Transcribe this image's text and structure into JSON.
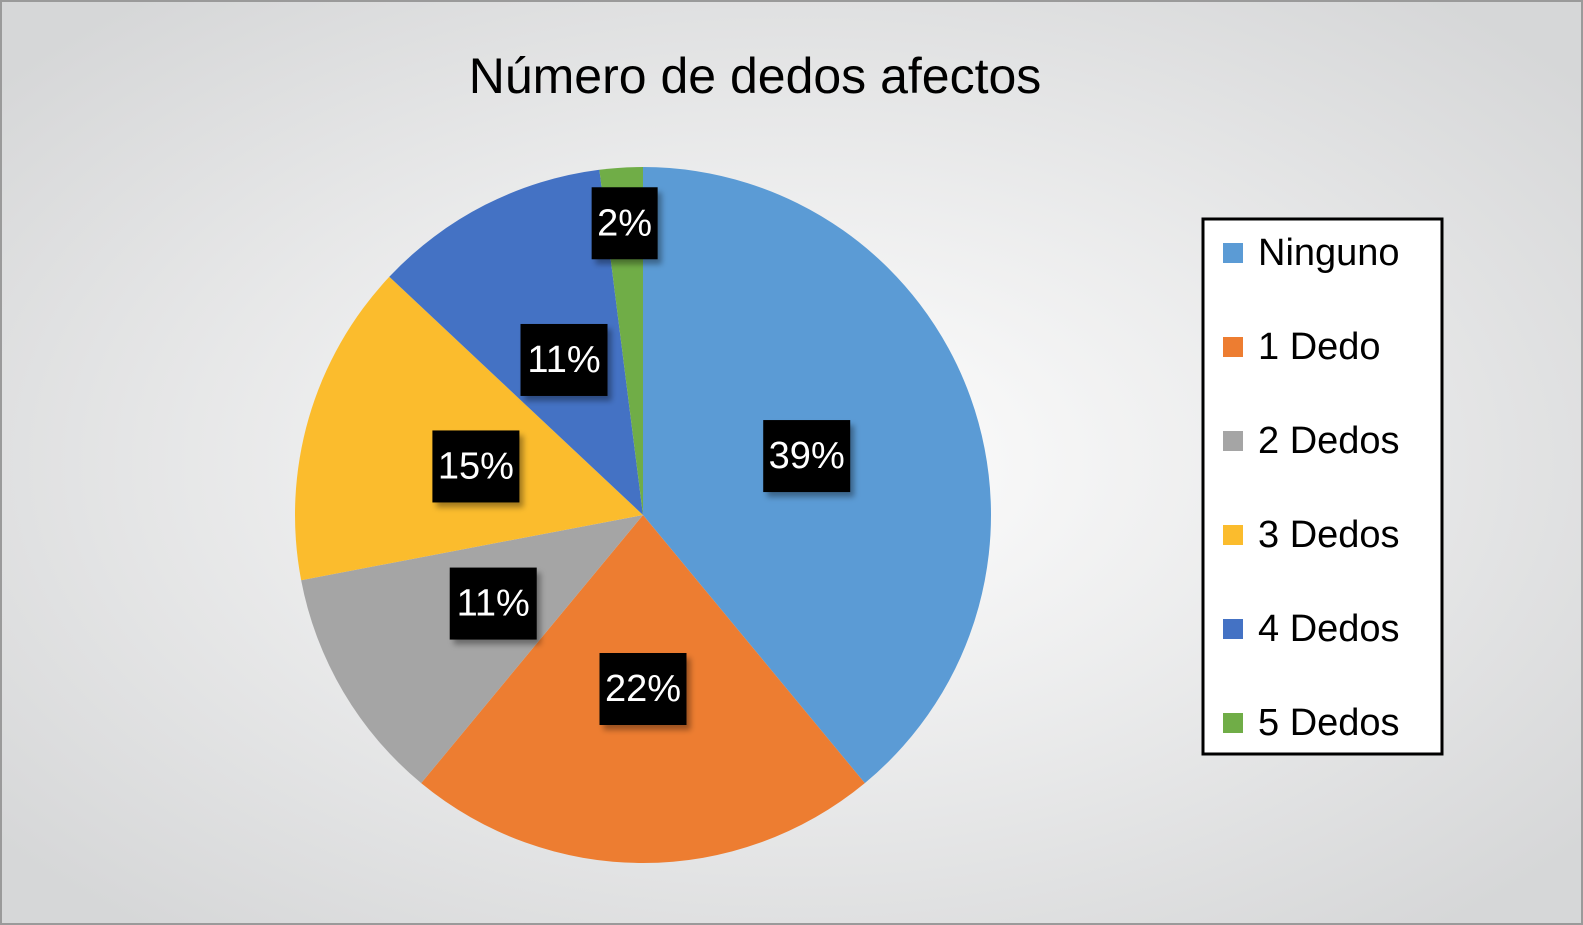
{
  "chart_data": {
    "type": "pie",
    "title": "Número de dedos afectos",
    "categories": [
      "Ninguno",
      "1 Dedo",
      "2 Dedos",
      "3 Dedos",
      "4 Dedos",
      "5 Dedos"
    ],
    "values": [
      39,
      22,
      11,
      15,
      11,
      2
    ],
    "value_labels": [
      "39%",
      "22%",
      "11%",
      "15%",
      "11%",
      "2%"
    ],
    "colors": [
      "#5b9bd5",
      "#ed7d31",
      "#a5a5a5",
      "#fbbc2d",
      "#4472c4",
      "#70ad47"
    ],
    "legend": "right"
  }
}
